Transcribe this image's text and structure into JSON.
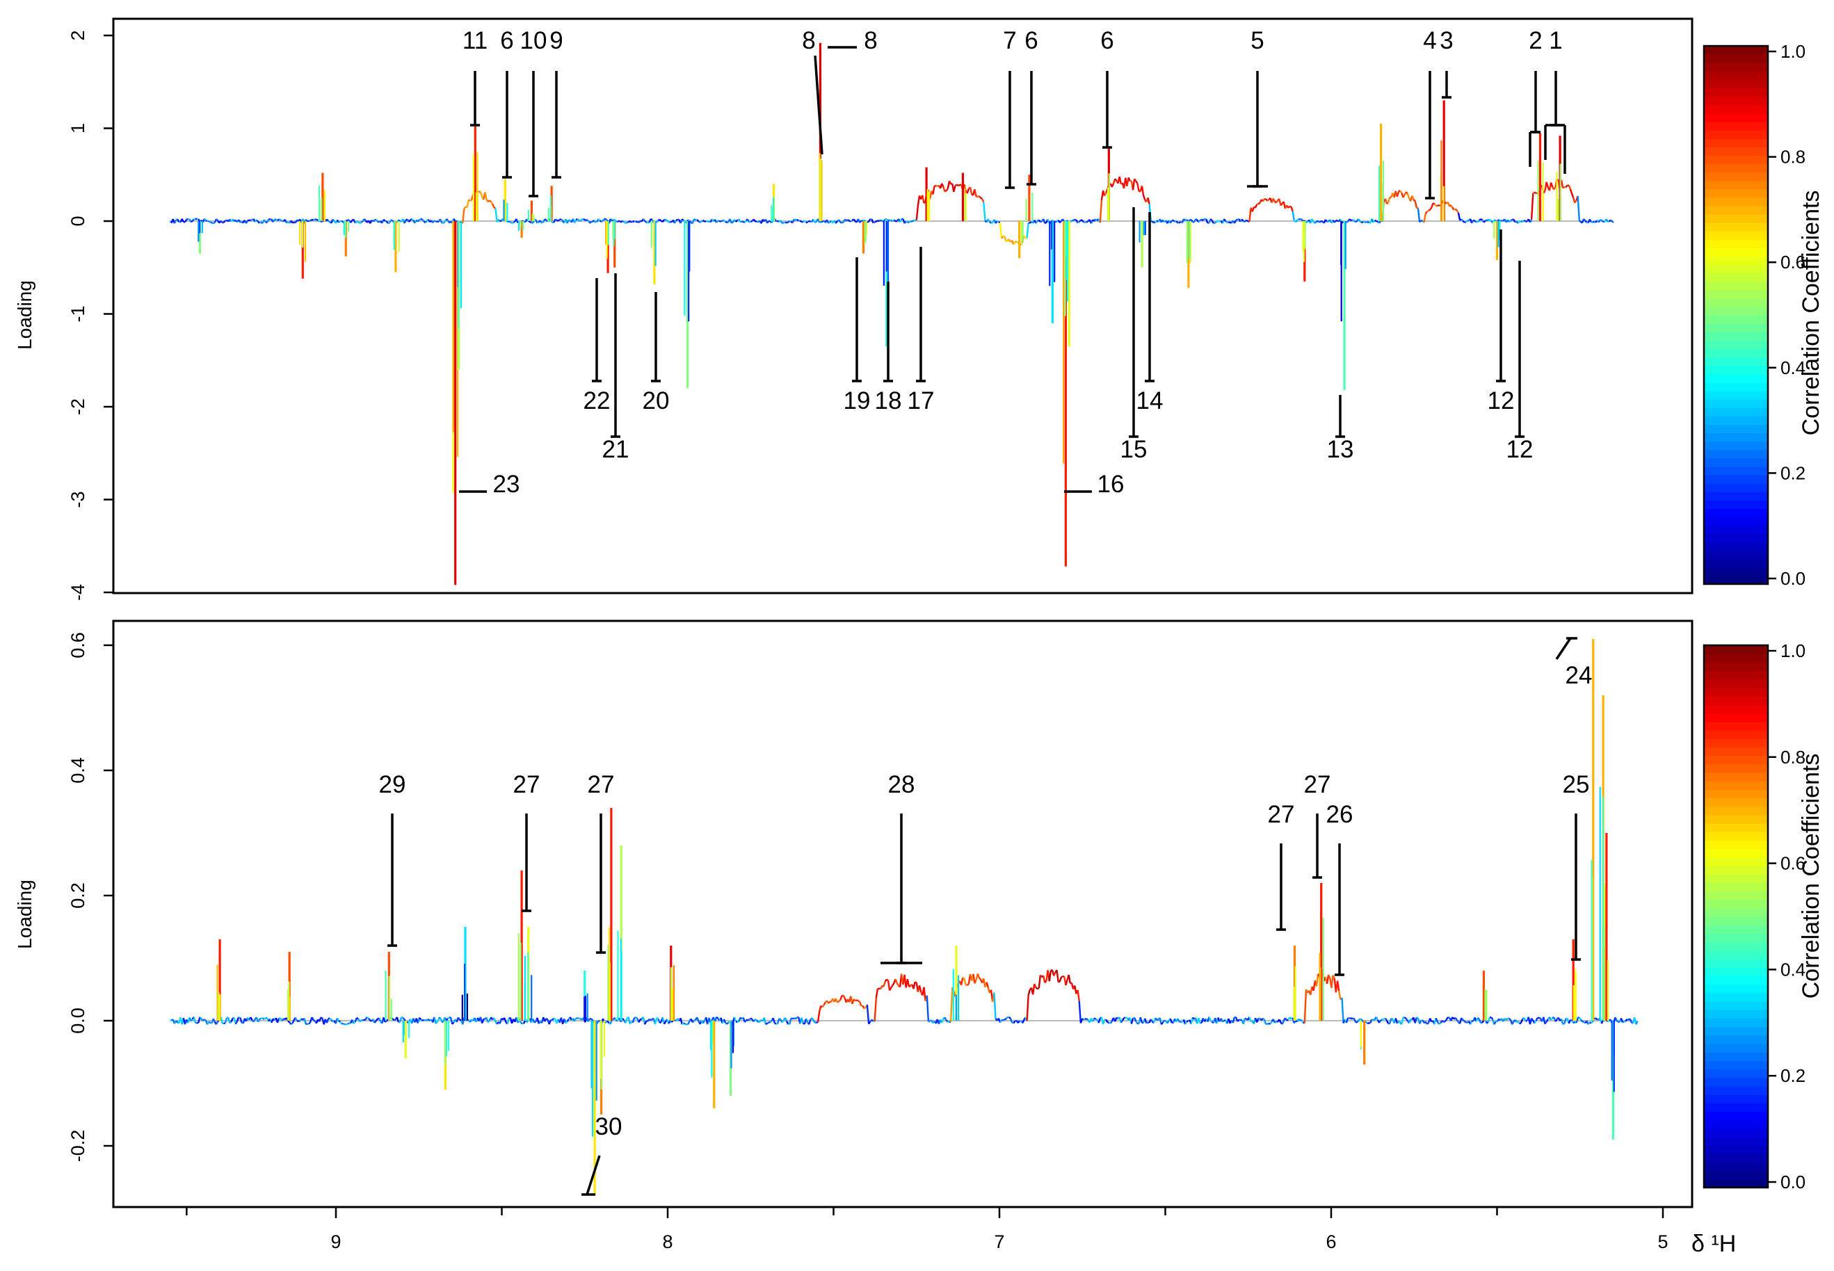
{
  "chart_data": [
    {
      "type": "line",
      "panel": "top",
      "ylabel": "Loading",
      "xlim": [
        9.5,
        5.0
      ],
      "ylim": [
        -4.0,
        2.0
      ],
      "x_direction": "reversed",
      "yticks": [
        2,
        1,
        0,
        -1,
        -2,
        -3,
        -4
      ],
      "ytick_labels": [
        "2",
        "1",
        "0",
        "-1",
        "-2",
        "-3",
        "-4"
      ],
      "color_encoding": "Correlation Coefficients",
      "spikes": [
        {
          "x": 9.41,
          "y": -0.35,
          "r": 0.5
        },
        {
          "x": 9.1,
          "y": -0.62,
          "r": 0.85
        },
        {
          "x": 9.04,
          "y": 0.52,
          "r": 0.8
        },
        {
          "x": 8.97,
          "y": -0.38,
          "r": 0.75
        },
        {
          "x": 8.82,
          "y": -0.55,
          "r": 0.7
        },
        {
          "x": 8.64,
          "y": -3.92,
          "r": 0.9
        },
        {
          "x": 8.63,
          "y": -1.6,
          "r": 0.55
        },
        {
          "x": 8.58,
          "y": 1.02,
          "r": 0.85
        },
        {
          "x": 8.49,
          "y": 0.45,
          "r": 0.65
        },
        {
          "x": 8.44,
          "y": -0.18,
          "r": 0.75
        },
        {
          "x": 8.41,
          "y": 0.22,
          "r": 0.8
        },
        {
          "x": 8.35,
          "y": 0.38,
          "r": 0.8
        },
        {
          "x": 8.18,
          "y": -0.56,
          "r": 0.85
        },
        {
          "x": 8.16,
          "y": -0.5,
          "r": 0.8
        },
        {
          "x": 8.04,
          "y": -0.68,
          "r": 0.65
        },
        {
          "x": 7.94,
          "y": -1.8,
          "r": 0.5
        },
        {
          "x": 7.68,
          "y": 0.4,
          "r": 0.65
        },
        {
          "x": 7.54,
          "y": 1.92,
          "r": 0.9
        },
        {
          "x": 7.41,
          "y": -0.35,
          "r": 0.75
        },
        {
          "x": 7.34,
          "y": -1.35,
          "r": 0.4
        },
        {
          "x": 7.22,
          "y": 0.58,
          "r": 0.9
        },
        {
          "x": 7.11,
          "y": 0.52,
          "r": 0.9
        },
        {
          "x": 6.94,
          "y": -0.4,
          "r": 0.7
        },
        {
          "x": 6.91,
          "y": 0.5,
          "r": 0.8
        },
        {
          "x": 6.84,
          "y": -1.1,
          "r": 0.35
        },
        {
          "x": 6.8,
          "y": -3.72,
          "r": 0.85
        },
        {
          "x": 6.79,
          "y": -1.35,
          "r": 0.6
        },
        {
          "x": 6.67,
          "y": 0.78,
          "r": 0.9
        },
        {
          "x": 6.57,
          "y": -0.5,
          "r": 0.55
        },
        {
          "x": 6.43,
          "y": -0.72,
          "r": 0.7
        },
        {
          "x": 6.08,
          "y": -0.65,
          "r": 0.85
        },
        {
          "x": 5.96,
          "y": -1.82,
          "r": 0.45
        },
        {
          "x": 5.85,
          "y": 1.05,
          "r": 0.7
        },
        {
          "x": 5.66,
          "y": 1.3,
          "r": 0.9
        },
        {
          "x": 5.5,
          "y": -0.42,
          "r": 0.7
        },
        {
          "x": 5.37,
          "y": 0.95,
          "r": 0.85
        },
        {
          "x": 5.31,
          "y": 0.92,
          "r": 0.9
        }
      ],
      "humps": [
        {
          "x1": 8.62,
          "x2": 8.52,
          "y": 0.28,
          "r": 0.75
        },
        {
          "x1": 7.25,
          "x2": 7.05,
          "y": 0.38,
          "r": 0.85
        },
        {
          "x1": 7.0,
          "x2": 6.92,
          "y": -0.25,
          "r": 0.7
        },
        {
          "x1": 6.7,
          "x2": 6.55,
          "y": 0.42,
          "r": 0.85
        },
        {
          "x1": 6.25,
          "x2": 6.12,
          "y": 0.22,
          "r": 0.85
        },
        {
          "x1": 5.85,
          "x2": 5.74,
          "y": 0.3,
          "r": 0.8
        },
        {
          "x1": 5.72,
          "x2": 5.62,
          "y": 0.2,
          "r": 0.8
        },
        {
          "x1": 5.4,
          "x2": 5.26,
          "y": 0.4,
          "r": 0.85
        }
      ],
      "annotations": [
        {
          "label": "11",
          "x": 8.58
        },
        {
          "label": "6",
          "x": 8.49
        },
        {
          "label": "10",
          "x": 8.43
        },
        {
          "label": "9",
          "x": 8.35
        },
        {
          "label": "8",
          "x": 7.55
        },
        {
          "label": "8",
          "x": 7.48
        },
        {
          "label": "7",
          "x": 6.95
        },
        {
          "label": "6",
          "x": 6.92
        },
        {
          "label": "6",
          "x": 6.67
        },
        {
          "label": "5",
          "x": 6.22
        },
        {
          "label": "4",
          "x": 5.69
        },
        {
          "label": "3",
          "x": 5.66
        },
        {
          "label": "2",
          "x": 5.39
        },
        {
          "label": "1",
          "x": 5.32
        },
        {
          "label": "22",
          "x": 8.18
        },
        {
          "label": "21",
          "x": 8.16
        },
        {
          "label": "20",
          "x": 8.04
        },
        {
          "label": "19",
          "x": 7.41
        },
        {
          "label": "18",
          "x": 7.34
        },
        {
          "label": "17",
          "x": 7.23
        },
        {
          "label": "15",
          "x": 6.59
        },
        {
          "label": "14",
          "x": 6.57
        },
        {
          "label": "13",
          "x": 5.96
        },
        {
          "label": "12",
          "x": 5.5
        },
        {
          "label": "12",
          "x": 5.43
        },
        {
          "label": "23",
          "x": 8.64
        },
        {
          "label": "16",
          "x": 6.8
        }
      ]
    },
    {
      "type": "line",
      "panel": "bottom",
      "ylabel": "Loading",
      "xlabel": "δ ¹H",
      "xlim": [
        9.5,
        5.0
      ],
      "ylim": [
        -0.3,
        0.6
      ],
      "x_direction": "reversed",
      "xticks": [
        9,
        8,
        7,
        6,
        5
      ],
      "xtick_labels": [
        "9",
        "8",
        "7",
        "6",
        "5"
      ],
      "yticks": [
        0.6,
        0.4,
        0.2,
        0.0,
        -0.2
      ],
      "ytick_labels": [
        "0.6",
        "0.4",
        "0.2",
        "0.0",
        "-0.2"
      ],
      "color_encoding": "Correlation Coefficients",
      "spikes": [
        {
          "x": 9.35,
          "y": 0.13,
          "r": 0.85
        },
        {
          "x": 9.14,
          "y": 0.11,
          "r": 0.8
        },
        {
          "x": 8.84,
          "y": 0.11,
          "r": 0.8
        },
        {
          "x": 8.79,
          "y": -0.06,
          "r": 0.6
        },
        {
          "x": 8.67,
          "y": -0.11,
          "r": 0.65
        },
        {
          "x": 8.61,
          "y": 0.15,
          "r": 0.35
        },
        {
          "x": 8.44,
          "y": 0.24,
          "r": 0.85
        },
        {
          "x": 8.42,
          "y": 0.15,
          "r": 0.6
        },
        {
          "x": 8.25,
          "y": 0.08,
          "r": 0.4
        },
        {
          "x": 8.22,
          "y": -0.28,
          "r": 0.65
        },
        {
          "x": 8.2,
          "y": -0.15,
          "r": 0.75
        },
        {
          "x": 8.17,
          "y": 0.34,
          "r": 0.85
        },
        {
          "x": 8.14,
          "y": 0.28,
          "r": 0.55
        },
        {
          "x": 7.99,
          "y": 0.12,
          "r": 0.9
        },
        {
          "x": 7.86,
          "y": -0.14,
          "r": 0.7
        },
        {
          "x": 7.81,
          "y": -0.12,
          "r": 0.5
        },
        {
          "x": 7.13,
          "y": 0.12,
          "r": 0.6
        },
        {
          "x": 6.11,
          "y": 0.12,
          "r": 0.75
        },
        {
          "x": 6.03,
          "y": 0.22,
          "r": 0.85
        },
        {
          "x": 5.9,
          "y": -0.07,
          "r": 0.75
        },
        {
          "x": 5.54,
          "y": 0.08,
          "r": 0.8
        },
        {
          "x": 5.27,
          "y": 0.13,
          "r": 0.85
        },
        {
          "x": 5.21,
          "y": 0.61,
          "r": 0.7
        },
        {
          "x": 5.18,
          "y": 0.52,
          "r": 0.7
        },
        {
          "x": 5.17,
          "y": 0.3,
          "r": 0.85
        },
        {
          "x": 5.15,
          "y": -0.19,
          "r": 0.45
        }
      ],
      "humps": [
        {
          "x1": 7.38,
          "x2": 7.22,
          "y": 0.065,
          "r": 0.85
        },
        {
          "x1": 7.55,
          "x2": 7.4,
          "y": 0.035,
          "r": 0.8
        },
        {
          "x1": 7.15,
          "x2": 7.02,
          "y": 0.07,
          "r": 0.8
        },
        {
          "x1": 6.92,
          "x2": 6.76,
          "y": 0.075,
          "r": 0.9
        },
        {
          "x1": 6.08,
          "x2": 5.97,
          "y": 0.07,
          "r": 0.8
        }
      ],
      "annotations": [
        {
          "label": "29",
          "x": 8.84
        },
        {
          "label": "27",
          "x": 8.42
        },
        {
          "label": "27",
          "x": 8.2
        },
        {
          "label": "28",
          "x": 7.3
        },
        {
          "label": "27",
          "x": 6.1
        },
        {
          "label": "27",
          "x": 6.04
        },
        {
          "label": "26",
          "x": 5.99
        },
        {
          "label": "25",
          "x": 5.25
        },
        {
          "label": "24",
          "x": 5.21
        },
        {
          "label": "30",
          "x": 8.21
        }
      ]
    }
  ],
  "colorbar": {
    "title": "Correlation Coefficients",
    "ticks": [
      "0.0",
      "0.2",
      "0.4",
      "0.6",
      "0.8",
      "1.0"
    ],
    "range": [
      0.0,
      1.0
    ]
  }
}
